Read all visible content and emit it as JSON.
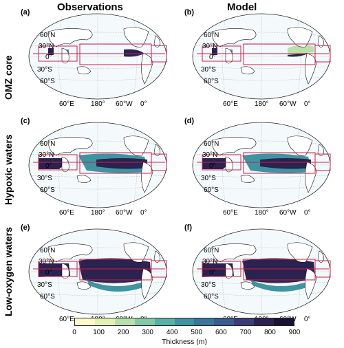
{
  "columns": [
    "Observations",
    "Model"
  ],
  "rows": [
    "OMZ core",
    "Hypoxic waters",
    "Low-oxygen waters"
  ],
  "panel_labels": [
    "(a)",
    "(b)",
    "(c)",
    "(d)",
    "(e)",
    "(f)"
  ],
  "lat_labels": [
    "60°N",
    "30°N",
    "0°",
    "30°S",
    "60°S"
  ],
  "lon_labels": [
    "60°E",
    "180°",
    "60°W",
    "0°"
  ],
  "colorbar": {
    "label": "Thickness (m)",
    "ticks": [
      "0",
      "100",
      "200",
      "300",
      "400",
      "500",
      "600",
      "700",
      "800",
      "900"
    ],
    "colors": [
      "#fdf9cc",
      "#e4f1b4",
      "#b8e0ab",
      "#83caa6",
      "#58b1a5",
      "#3f94a2",
      "#3a769b",
      "#3b5a90",
      "#3a3d7a",
      "#2c2250",
      "#1a1232"
    ]
  }
}
